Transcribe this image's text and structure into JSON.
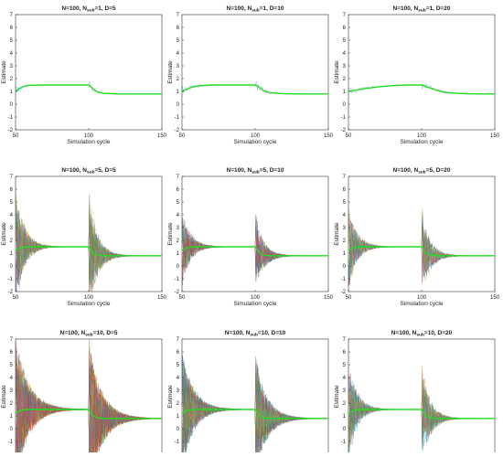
{
  "chart_data": [
    {
      "type": "line",
      "title": "N=100, N_sub=1, D=5",
      "title_main": "N=100, N",
      "title_sub": "sub",
      "title_rest": "=1, D=5",
      "xlabel": "Simulation cycle",
      "ylabel": "Estimate",
      "xlim": [
        50,
        150
      ],
      "ylim": [
        -2,
        7
      ],
      "xticks": [
        50,
        100,
        150
      ],
      "yticks": [
        -2,
        -1,
        0,
        1,
        2,
        3,
        4,
        5,
        6,
        7
      ],
      "grid": false,
      "mean_series": {
        "name": "",
        "x": [
          50,
          53,
          56,
          60,
          70,
          80,
          90,
          100,
          103,
          106,
          110,
          120,
          130,
          140,
          150
        ],
        "values": [
          1.0,
          1.25,
          1.42,
          1.48,
          1.5,
          1.5,
          1.5,
          1.5,
          1.2,
          0.95,
          0.85,
          0.8,
          0.8,
          0.8,
          0.8
        ]
      },
      "sample_count": 1,
      "spike_amplitude": 0.5,
      "decay_cycles": 5
    },
    {
      "type": "line",
      "title": "N=100, N_sub=1, D=10",
      "title_main": "N=100, N",
      "title_sub": "sub",
      "title_rest": "=1, D=10",
      "xlabel": "Simulation cycle",
      "ylabel": "Estimate",
      "xlim": [
        50,
        150
      ],
      "ylim": [
        -2,
        7
      ],
      "xticks": [
        50,
        100,
        150
      ],
      "yticks": [
        -2,
        -1,
        0,
        1,
        2,
        3,
        4,
        5,
        6,
        7
      ],
      "grid": false,
      "mean_series": {
        "name": "",
        "x": [
          50,
          53,
          56,
          60,
          70,
          80,
          90,
          100,
          103,
          106,
          110,
          120,
          130,
          140,
          150
        ],
        "values": [
          1.0,
          1.15,
          1.3,
          1.42,
          1.5,
          1.5,
          1.5,
          1.5,
          1.3,
          1.05,
          0.9,
          0.82,
          0.8,
          0.8,
          0.8
        ]
      },
      "sample_count": 1,
      "spike_amplitude": 0.5,
      "decay_cycles": 8
    },
    {
      "type": "line",
      "title": "N=100, N_sub=1, D=20",
      "title_main": "N=100, N",
      "title_sub": "sub",
      "title_rest": "=1, D=20",
      "xlabel": "Simulation cycle",
      "ylabel": "Estimate",
      "xlim": [
        50,
        150
      ],
      "ylim": [
        -2,
        7
      ],
      "xticks": [
        50,
        100,
        150
      ],
      "yticks": [
        -2,
        -1,
        0,
        1,
        2,
        3,
        4,
        5,
        6,
        7
      ],
      "grid": false,
      "mean_series": {
        "name": "",
        "x": [
          50,
          55,
          60,
          70,
          80,
          90,
          100,
          105,
          110,
          115,
          120,
          130,
          140,
          150
        ],
        "values": [
          1.0,
          1.1,
          1.2,
          1.35,
          1.45,
          1.5,
          1.5,
          1.3,
          1.1,
          0.95,
          0.88,
          0.82,
          0.8,
          0.8
        ]
      },
      "sample_count": 1,
      "spike_amplitude": 0.4,
      "decay_cycles": 12
    },
    {
      "type": "line",
      "title": "N=100, N_sub=5, D=5",
      "title_main": "N=100, N",
      "title_sub": "sub",
      "title_rest": "=5, D=5",
      "xlabel": "Simulation cycle",
      "ylabel": "Estimate",
      "xlim": [
        50,
        150
      ],
      "ylim": [
        -2,
        7
      ],
      "xticks": [
        50,
        100,
        150
      ],
      "yticks": [
        -2,
        -1,
        0,
        1,
        2,
        3,
        4,
        5,
        6,
        7
      ],
      "grid": false,
      "mean_series": {
        "name": "",
        "x": [
          50,
          53,
          56,
          60,
          70,
          80,
          90,
          100,
          103,
          106,
          110,
          120,
          130,
          140,
          150
        ],
        "values": [
          1.2,
          1.4,
          1.48,
          1.5,
          1.5,
          1.5,
          1.5,
          1.5,
          1.0,
          0.85,
          0.8,
          0.8,
          0.8,
          0.8,
          0.8
        ]
      },
      "sample_count": 30,
      "spike_amplitude": 5.0,
      "decay_cycles": 6
    },
    {
      "type": "line",
      "title": "N=100, N_sub=5, D=10",
      "title_main": "N=100, N",
      "title_sub": "sub",
      "title_rest": "=5, D=10",
      "xlabel": "Simulation cycle",
      "ylabel": "Estimate",
      "xlim": [
        50,
        150
      ],
      "ylim": [
        -2,
        7
      ],
      "xticks": [
        50,
        100,
        150
      ],
      "yticks": [
        -2,
        -1,
        0,
        1,
        2,
        3,
        4,
        5,
        6,
        7
      ],
      "grid": false,
      "mean_series": {
        "name": "",
        "x": [
          50,
          53,
          56,
          60,
          70,
          80,
          90,
          100,
          103,
          106,
          110,
          120,
          130,
          140,
          150
        ],
        "values": [
          1.2,
          1.4,
          1.48,
          1.5,
          1.5,
          1.5,
          1.5,
          1.5,
          1.0,
          0.85,
          0.8,
          0.8,
          0.8,
          0.8,
          0.8
        ]
      },
      "sample_count": 25,
      "spike_amplitude": 3.0,
      "decay_cycles": 6
    },
    {
      "type": "line",
      "title": "N=100, N_sub=5, D=20",
      "title_main": "N=100, N",
      "title_sub": "sub",
      "title_rest": "=5, D=20",
      "xlabel": "Simulation cycle",
      "ylabel": "Estimate",
      "xlim": [
        50,
        150
      ],
      "ylim": [
        -2,
        7
      ],
      "xticks": [
        50,
        100,
        150
      ],
      "yticks": [
        -2,
        -1,
        0,
        1,
        2,
        3,
        4,
        5,
        6,
        7
      ],
      "grid": false,
      "mean_series": {
        "name": "",
        "x": [
          50,
          53,
          56,
          60,
          70,
          80,
          90,
          100,
          103,
          106,
          110,
          120,
          130,
          140,
          150
        ],
        "values": [
          1.2,
          1.4,
          1.48,
          1.5,
          1.5,
          1.5,
          1.5,
          1.5,
          1.0,
          0.85,
          0.8,
          0.8,
          0.8,
          0.8,
          0.8
        ]
      },
      "sample_count": 20,
      "spike_amplitude": 3.5,
      "decay_cycles": 6
    },
    {
      "type": "line",
      "title": "N=100, N_sub=10, D=5",
      "title_main": "N=100, N",
      "title_sub": "sub",
      "title_rest": "=10, D=5",
      "xlabel": "Simulation cycle",
      "ylabel": "Estimate",
      "xlim": [
        50,
        150
      ],
      "ylim": [
        -2,
        7
      ],
      "xticks": [
        50,
        100,
        150
      ],
      "yticks": [
        -2,
        -1,
        0,
        1,
        2,
        3,
        4,
        5,
        6,
        7
      ],
      "grid": false,
      "mean_series": {
        "name": "",
        "x": [
          50,
          53,
          56,
          60,
          70,
          80,
          90,
          100,
          103,
          106,
          110,
          120,
          130,
          140,
          150
        ],
        "values": [
          1.2,
          1.4,
          1.48,
          1.5,
          1.5,
          1.5,
          1.5,
          1.5,
          1.0,
          0.85,
          0.8,
          0.8,
          0.8,
          0.8,
          0.8
        ]
      },
      "sample_count": 45,
      "spike_amplitude": 6.0,
      "decay_cycles": 9
    },
    {
      "type": "line",
      "title": "N=100, N_sub=10, D=10",
      "title_main": "N=100, N",
      "title_sub": "sub",
      "title_rest": "=10, D=10",
      "xlabel": "Simulation cycle",
      "ylabel": "Estimate",
      "xlim": [
        50,
        150
      ],
      "ylim": [
        -2,
        7
      ],
      "xticks": [
        50,
        100,
        150
      ],
      "yticks": [
        -2,
        -1,
        0,
        1,
        2,
        3,
        4,
        5,
        6,
        7
      ],
      "grid": false,
      "mean_series": {
        "name": "",
        "x": [
          50,
          53,
          56,
          60,
          70,
          80,
          90,
          100,
          103,
          106,
          110,
          120,
          130,
          140,
          150
        ],
        "values": [
          1.2,
          1.4,
          1.48,
          1.5,
          1.5,
          1.5,
          1.5,
          1.5,
          1.0,
          0.85,
          0.8,
          0.8,
          0.8,
          0.8,
          0.8
        ]
      },
      "sample_count": 40,
      "spike_amplitude": 5.0,
      "decay_cycles": 8
    },
    {
      "type": "line",
      "title": "N=100, N_sub=10, D=20",
      "title_main": "N=100, N",
      "title_sub": "sub",
      "title_rest": "=10, D=20",
      "xlabel": "Simulation cycle",
      "ylabel": "Estimate",
      "xlim": [
        50,
        150
      ],
      "ylim": [
        -2,
        7
      ],
      "xticks": [
        50,
        100,
        150
      ],
      "yticks": [
        -2,
        -1,
        0,
        1,
        2,
        3,
        4,
        5,
        6,
        7
      ],
      "grid": false,
      "mean_series": {
        "name": "",
        "x": [
          50,
          53,
          56,
          60,
          70,
          80,
          90,
          100,
          103,
          106,
          110,
          120,
          130,
          140,
          150
        ],
        "values": [
          1.2,
          1.4,
          1.48,
          1.5,
          1.5,
          1.5,
          1.5,
          1.5,
          1.0,
          0.85,
          0.8,
          0.8,
          0.8,
          0.8,
          0.8
        ]
      },
      "sample_count": 30,
      "spike_amplitude": 4.0,
      "decay_cycles": 6
    }
  ],
  "colors": {
    "mean_line": "#22dd22",
    "axis": "#333333",
    "sample_palette": [
      "#1f77b4",
      "#ff7f0e",
      "#d62728",
      "#9467bd",
      "#8c564b",
      "#e377c2",
      "#17becf",
      "#bcbd22",
      "#2ca02c",
      "#7f7f7f"
    ]
  }
}
